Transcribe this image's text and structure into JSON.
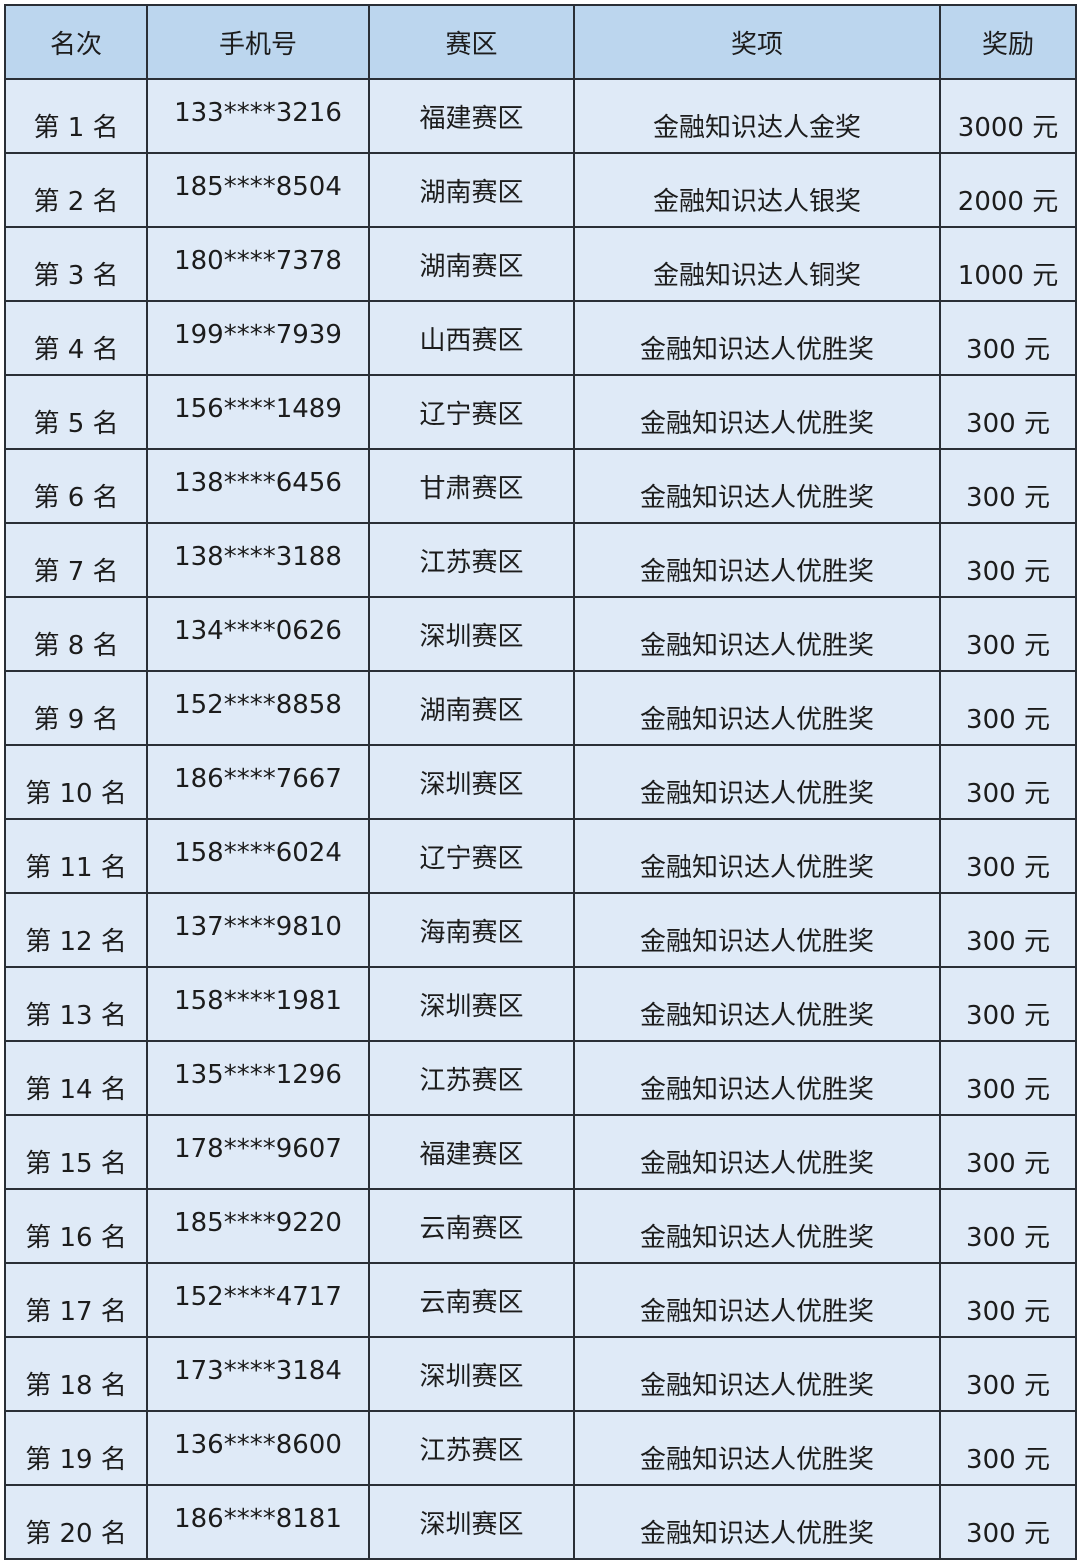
{
  "table": {
    "headers": [
      "名次",
      "手机号",
      "赛区",
      "奖项",
      "奖励"
    ],
    "rows": [
      [
        "第 1 名",
        "133****3216",
        "福建赛区",
        "金融知识达人金奖",
        "3000 元"
      ],
      [
        "第 2 名",
        "185****8504",
        "湖南赛区",
        "金融知识达人银奖",
        "2000 元"
      ],
      [
        "第 3 名",
        "180****7378",
        "湖南赛区",
        "金融知识达人铜奖",
        "1000 元"
      ],
      [
        "第 4 名",
        "199****7939",
        "山西赛区",
        "金融知识达人优胜奖",
        "300 元"
      ],
      [
        "第 5 名",
        "156****1489",
        "辽宁赛区",
        "金融知识达人优胜奖",
        "300 元"
      ],
      [
        "第 6 名",
        "138****6456",
        "甘肃赛区",
        "金融知识达人优胜奖",
        "300 元"
      ],
      [
        "第 7 名",
        "138****3188",
        "江苏赛区",
        "金融知识达人优胜奖",
        "300 元"
      ],
      [
        "第 8 名",
        "134****0626",
        "深圳赛区",
        "金融知识达人优胜奖",
        "300 元"
      ],
      [
        "第 9 名",
        "152****8858",
        "湖南赛区",
        "金融知识达人优胜奖",
        "300 元"
      ],
      [
        "第 10 名",
        "186****7667",
        "深圳赛区",
        "金融知识达人优胜奖",
        "300 元"
      ],
      [
        "第 11 名",
        "158****6024",
        "辽宁赛区",
        "金融知识达人优胜奖",
        "300 元"
      ],
      [
        "第 12 名",
        "137****9810",
        "海南赛区",
        "金融知识达人优胜奖",
        "300 元"
      ],
      [
        "第 13 名",
        "158****1981",
        "深圳赛区",
        "金融知识达人优胜奖",
        "300 元"
      ],
      [
        "第 14 名",
        "135****1296",
        "江苏赛区",
        "金融知识达人优胜奖",
        "300 元"
      ],
      [
        "第 15 名",
        "178****9607",
        "福建赛区",
        "金融知识达人优胜奖",
        "300 元"
      ],
      [
        "第 16 名",
        "185****9220",
        "云南赛区",
        "金融知识达人优胜奖",
        "300 元"
      ],
      [
        "第 17 名",
        "152****4717",
        "云南赛区",
        "金融知识达人优胜奖",
        "300 元"
      ],
      [
        "第 18 名",
        "173****3184",
        "深圳赛区",
        "金融知识达人优胜奖",
        "300 元"
      ],
      [
        "第 19 名",
        "136****8600",
        "江苏赛区",
        "金融知识达人优胜奖",
        "300 元"
      ],
      [
        "第 20 名",
        "186****8181",
        "深圳赛区",
        "金融知识达人优胜奖",
        "300 元"
      ]
    ]
  },
  "colors": {
    "header_bg": "#bcd6ee",
    "cell_bg": "#dfeaf7",
    "border": "#2a2f36"
  }
}
